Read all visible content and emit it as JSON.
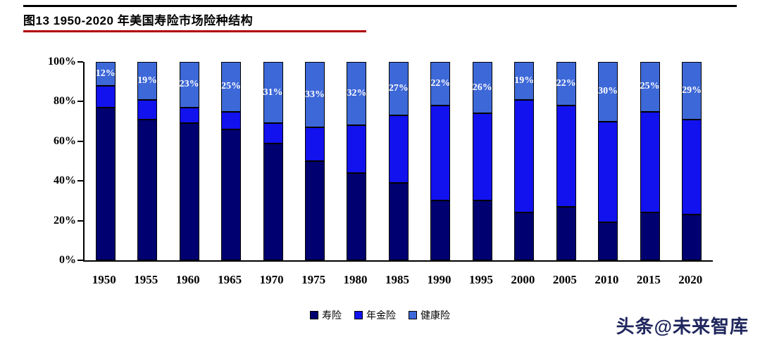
{
  "figure": {
    "title": "图13 1950-2020 年美国寿险市场险种结构",
    "title_underline_color": "#b00000"
  },
  "watermark": "头条@未来智库",
  "chart_data": {
    "type": "bar",
    "subtype": "stacked-100-percent",
    "title": "图13 1950-2020 年美国寿险市场险种结构",
    "categories": [
      "1950",
      "1955",
      "1960",
      "1965",
      "1970",
      "1975",
      "1980",
      "1985",
      "1990",
      "1995",
      "2000",
      "2005",
      "2010",
      "2015",
      "2020"
    ],
    "series": [
      {
        "name": "寿险",
        "color": "#000070",
        "values": [
          77,
          71,
          69,
          66,
          59,
          50,
          44,
          39,
          30,
          30,
          24,
          27,
          19,
          24,
          23
        ]
      },
      {
        "name": "年金险",
        "color": "#1212ee",
        "values": [
          11,
          10,
          8,
          9,
          10,
          17,
          24,
          34,
          48,
          44,
          57,
          51,
          51,
          51,
          48
        ]
      },
      {
        "name": "健康险",
        "color": "#3d68d8",
        "values": [
          12,
          19,
          23,
          25,
          31,
          33,
          32,
          27,
          22,
          26,
          19,
          22,
          30,
          25,
          29
        ]
      }
    ],
    "data_labels_series": "健康险",
    "data_labels": [
      "12%",
      "19%",
      "23%",
      "25%",
      "31%",
      "33%",
      "32%",
      "27%",
      "22%",
      "26%",
      "19%",
      "22%",
      "30%",
      "25%",
      "29%"
    ],
    "y_ticks": [
      "100%",
      "80%",
      "60%",
      "40%",
      "20%",
      "0%"
    ],
    "ylim": [
      0,
      100
    ],
    "xlabel": "",
    "ylabel": "",
    "grid": false,
    "legend_position": "bottom"
  }
}
